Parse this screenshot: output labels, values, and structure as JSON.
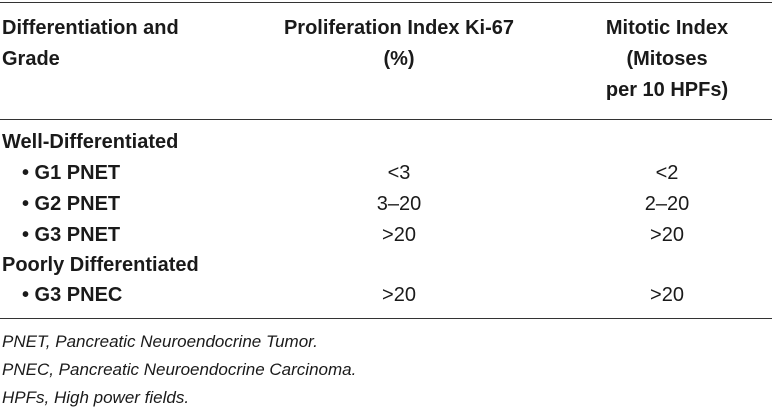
{
  "header": {
    "col1_line1": "Differentiation and",
    "col1_line2": "Grade",
    "col2_line1": "Proliferation Index Ki-67",
    "col2_line2": "(%)",
    "col3_line1": "Mitotic Index",
    "col3_line2": "(Mitoses",
    "col3_line3": "per 10 HPFs)"
  },
  "rows": [
    {
      "label": "Well-Differentiated",
      "ki67": "",
      "mitotic": ""
    },
    {
      "label": "• G1 PNET",
      "ki67": "<3",
      "mitotic": "<2"
    },
    {
      "label": "• G2 PNET",
      "ki67": "3–20",
      "mitotic": "2–20"
    },
    {
      "label": "• G3 PNET",
      "ki67": ">20",
      "mitotic": ">20"
    },
    {
      "label": "Poorly Differentiated",
      "ki67": "",
      "mitotic": ""
    },
    {
      "label": "• G3 PNEC",
      "ki67": ">20",
      "mitotic": ">20"
    }
  ],
  "footnotes": [
    "PNET, Pancreatic Neuroendocrine Tumor.",
    "PNEC, Pancreatic Neuroendocrine Carcinoma.",
    "HPFs, High power fields."
  ]
}
